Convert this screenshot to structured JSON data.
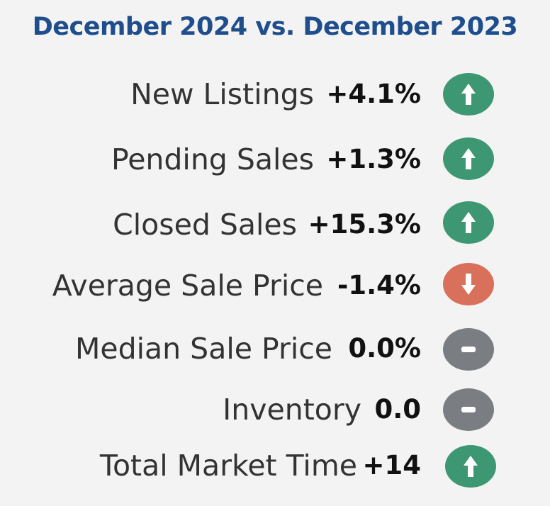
{
  "title": "December 2024 vs. December 2023",
  "colors": {
    "up": "#3e9773",
    "down": "#d9705c",
    "flat": "#7a7d82",
    "title": "#1f4e8c"
  },
  "rows": [
    {
      "label": "New Listings",
      "value": "+4.1%",
      "trend": "up",
      "icon": "arrow-up-icon"
    },
    {
      "label": "Pending Sales",
      "value": "+1.3%",
      "trend": "up",
      "icon": "arrow-up-icon"
    },
    {
      "label": "Closed Sales",
      "value": "+15.3%",
      "trend": "up",
      "icon": "arrow-up-icon"
    },
    {
      "label": "Average Sale Price",
      "value": "-1.4%",
      "trend": "down",
      "icon": "arrow-down-icon"
    },
    {
      "label": "Median Sale Price",
      "value": "0.0%",
      "trend": "flat",
      "icon": "minus-icon"
    },
    {
      "label": "Inventory",
      "value": "0.0",
      "trend": "flat",
      "icon": "minus-icon"
    },
    {
      "label": "Total Market Time",
      "value": "+14",
      "trend": "up",
      "icon": "arrow-up-icon"
    }
  ]
}
